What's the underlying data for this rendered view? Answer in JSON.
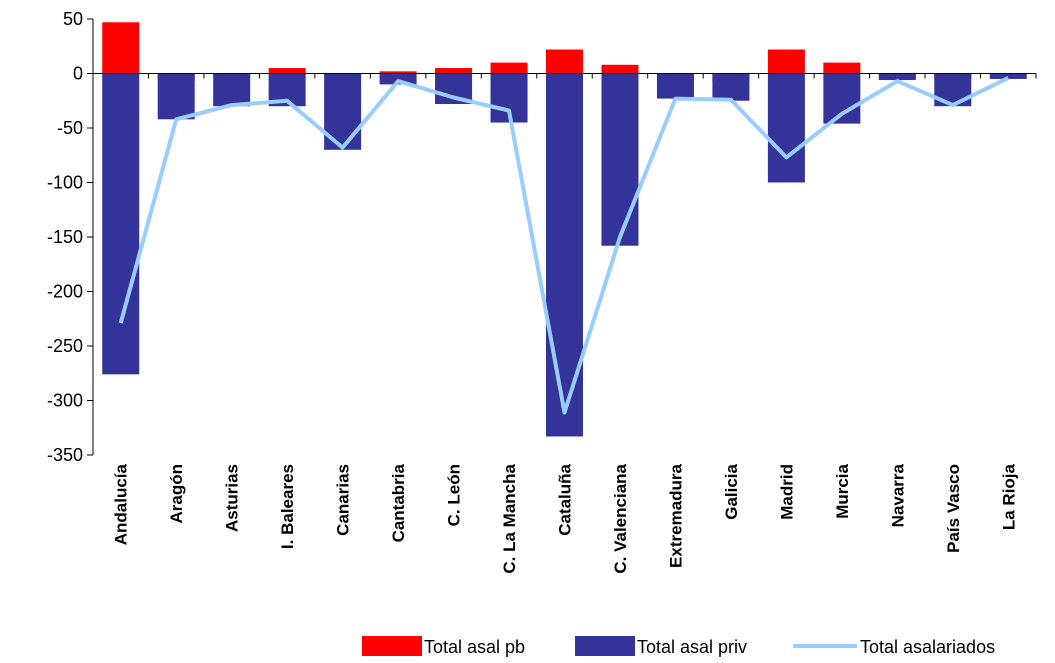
{
  "chart_data": {
    "type": "bar",
    "categories": [
      "Andalucía",
      "Aragón",
      "Asturias",
      "I. Baleares",
      "Canarias",
      "Cantabria",
      "C. León",
      "C. La Mancha",
      "Cataluña",
      "C. Valenciana",
      "Extremadura",
      "Galicia",
      "Madrid",
      "Murcia",
      "Navarra",
      "País Vasco",
      "La Rioja"
    ],
    "ylim": [
      -350,
      50
    ],
    "yticks": [
      50,
      0,
      -50,
      -100,
      -150,
      -200,
      -250,
      -300,
      -350
    ],
    "ytick_labels": [
      "50",
      "0",
      "-50",
      "-100",
      "-150",
      "-200",
      "-250",
      "-300",
      "-350"
    ],
    "series": [
      {
        "name": "Total asal pb",
        "kind": "bar",
        "color": "#ff0000",
        "values": [
          47,
          -7,
          -3,
          5,
          -2,
          2,
          5,
          10,
          22,
          8,
          0,
          -7,
          22,
          10,
          -4,
          -5,
          0
        ]
      },
      {
        "name": "Total asal priv",
        "kind": "bar",
        "color": "#333399",
        "values": [
          -276,
          -42,
          -30,
          -30,
          -70,
          -10,
          -28,
          -45,
          -333,
          -158,
          -23,
          -25,
          -100,
          -46,
          -6,
          -30,
          -5
        ]
      },
      {
        "name": "Total asalariados",
        "kind": "line",
        "color": "#99ccff",
        "values": [
          -229,
          -42,
          -29,
          -25,
          -68,
          -7,
          -22,
          -34,
          -311,
          -150,
          -23,
          -24,
          -77,
          -37,
          -7,
          -29,
          -4
        ]
      }
    ],
    "legend_position": "bottom-right"
  }
}
